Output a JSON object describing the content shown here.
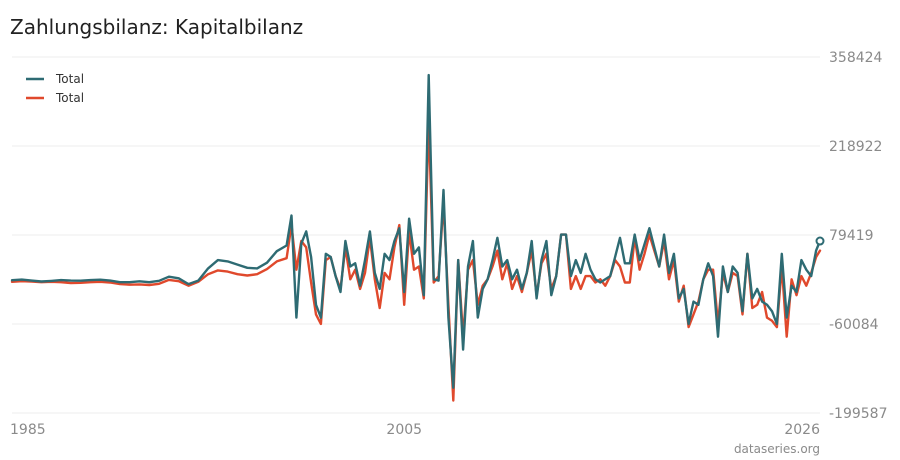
{
  "chart_data": {
    "type": "line",
    "title": "Zahlungsbilanz: Kapitalbilanz",
    "xlabel": "",
    "ylabel": "",
    "source": "dataseries.org",
    "xlim": [
      1985.0,
      2026.2
    ],
    "ylim": [
      -199587,
      358424
    ],
    "y_ticks": [
      "358424",
      "218922",
      "79419",
      "-60084",
      "-199587"
    ],
    "y_tick_values": [
      358424,
      218922,
      79419,
      -60084,
      -199587
    ],
    "x_ticks": [
      "1985",
      "2005",
      "2026"
    ],
    "x_tick_values": [
      1985,
      2005,
      2026
    ],
    "grid": true,
    "legend_position": "top-left",
    "series": [
      {
        "name": "Total",
        "color": "#2e6b73",
        "x": [
          1985.0,
          1985.5,
          1986.0,
          1986.5,
          1987.0,
          1987.5,
          1988.0,
          1988.5,
          1989.0,
          1989.5,
          1990.0,
          1990.5,
          1991.0,
          1991.5,
          1992.0,
          1992.5,
          1993.0,
          1993.5,
          1994.0,
          1994.5,
          1995.0,
          1995.5,
          1996.0,
          1996.5,
          1997.0,
          1997.5,
          1998.0,
          1998.5,
          1999.0,
          1999.25,
          1999.5,
          1999.75,
          2000.0,
          2000.25,
          2000.5,
          2000.75,
          2001.0,
          2001.25,
          2001.5,
          2001.75,
          2002.0,
          2002.25,
          2002.5,
          2002.75,
          2003.0,
          2003.25,
          2003.5,
          2003.75,
          2004.0,
          2004.25,
          2004.5,
          2004.75,
          2005.0,
          2005.25,
          2005.5,
          2005.75,
          2006.0,
          2006.25,
          2006.5,
          2006.75,
          2007.0,
          2007.25,
          2007.5,
          2007.75,
          2008.0,
          2008.25,
          2008.5,
          2008.75,
          2009.0,
          2009.25,
          2009.5,
          2009.75,
          2010.0,
          2010.25,
          2010.5,
          2010.75,
          2011.0,
          2011.25,
          2011.5,
          2011.75,
          2012.0,
          2012.25,
          2012.5,
          2012.75,
          2013.0,
          2013.25,
          2013.5,
          2013.75,
          2014.0,
          2014.25,
          2014.5,
          2014.75,
          2015.0,
          2015.25,
          2015.5,
          2015.75,
          2016.0,
          2016.25,
          2016.5,
          2016.75,
          2017.0,
          2017.25,
          2017.5,
          2017.75,
          2018.0,
          2018.25,
          2018.5,
          2018.75,
          2019.0,
          2019.25,
          2019.5,
          2019.75,
          2020.0,
          2020.25,
          2020.5,
          2020.75,
          2021.0,
          2021.25,
          2021.5,
          2021.75,
          2022.0,
          2022.25,
          2022.5,
          2022.75,
          2023.0,
          2023.25,
          2023.5,
          2023.75,
          2024.0,
          2024.25,
          2024.5,
          2024.75,
          2025.0,
          2025.25,
          2025.5,
          2025.75,
          2026.0,
          2026.2
        ],
        "values": [
          8500,
          9500,
          8000,
          6500,
          7500,
          8700,
          8000,
          7800,
          8700,
          9300,
          8000,
          5500,
          5500,
          6900,
          5500,
          7700,
          14000,
          11500,
          2500,
          8000,
          27000,
          40000,
          38000,
          33000,
          28000,
          27000,
          36000,
          54000,
          63000,
          110000,
          -50000,
          66000,
          85000,
          45000,
          -30000,
          -50000,
          50000,
          45000,
          15000,
          -10000,
          70000,
          30000,
          35000,
          0,
          40000,
          85000,
          20000,
          -5000,
          50000,
          40000,
          70000,
          90000,
          -10000,
          105000,
          50000,
          60000,
          -15000,
          330000,
          10000,
          8000,
          150000,
          -50000,
          -160000,
          40000,
          -100000,
          30000,
          70000,
          -50000,
          -5000,
          10000,
          40000,
          75000,
          30000,
          40000,
          10000,
          25000,
          -5000,
          20000,
          70000,
          -20000,
          40000,
          70000,
          -15000,
          15000,
          80000,
          80000,
          15000,
          40000,
          20000,
          50000,
          25000,
          10000,
          5000,
          10000,
          15000,
          45000,
          75000,
          35000,
          35000,
          80000,
          40000,
          65000,
          90000,
          60000,
          30000,
          80000,
          20000,
          50000,
          -20000,
          -5000,
          -60000,
          -25000,
          -30000,
          10000,
          35000,
          15000,
          -80000,
          30000,
          -10000,
          30000,
          20000,
          -40000,
          50000,
          -20000,
          -5000,
          -25000,
          -30000,
          -40000,
          -60000,
          50000,
          -50000,
          0,
          -10000,
          40000,
          25000,
          15000,
          55000,
          70000
        ]
      },
      {
        "name": "Total",
        "color": "#e0492c",
        "x": [
          1985.0,
          1985.5,
          1986.0,
          1986.5,
          1987.0,
          1987.5,
          1988.0,
          1988.5,
          1989.0,
          1989.5,
          1990.0,
          1990.5,
          1991.0,
          1991.5,
          1992.0,
          1992.5,
          1993.0,
          1993.5,
          1994.0,
          1994.5,
          1995.0,
          1995.5,
          1996.0,
          1996.5,
          1997.0,
          1997.5,
          1998.0,
          1998.5,
          1999.0,
          1999.25,
          1999.5,
          1999.75,
          2000.0,
          2000.25,
          2000.5,
          2000.75,
          2001.0,
          2001.25,
          2001.5,
          2001.75,
          2002.0,
          2002.25,
          2002.5,
          2002.75,
          2003.0,
          2003.25,
          2003.5,
          2003.75,
          2004.0,
          2004.25,
          2004.5,
          2004.75,
          2005.0,
          2005.25,
          2005.5,
          2005.75,
          2006.0,
          2006.25,
          2006.5,
          2006.75,
          2007.0,
          2007.25,
          2007.5,
          2007.75,
          2008.0,
          2008.25,
          2008.5,
          2008.75,
          2009.0,
          2009.25,
          2009.5,
          2009.75,
          2010.0,
          2010.25,
          2010.5,
          2010.75,
          2011.0,
          2011.25,
          2011.5,
          2011.75,
          2012.0,
          2012.25,
          2012.5,
          2012.75,
          2013.0,
          2013.25,
          2013.5,
          2013.75,
          2014.0,
          2014.25,
          2014.5,
          2014.75,
          2015.0,
          2015.25,
          2015.5,
          2015.75,
          2016.0,
          2016.25,
          2016.5,
          2016.75,
          2017.0,
          2017.25,
          2017.5,
          2017.75,
          2018.0,
          2018.25,
          2018.5,
          2018.75,
          2019.0,
          2019.25,
          2019.5,
          2019.75,
          2020.0,
          2020.25,
          2020.5,
          2020.75,
          2021.0,
          2021.25,
          2021.5,
          2021.75,
          2022.0,
          2022.25,
          2022.5,
          2022.75,
          2023.0,
          2023.25,
          2023.5,
          2023.75,
          2024.0,
          2024.25,
          2024.5,
          2024.75,
          2025.0,
          2025.25,
          2025.5,
          2025.75,
          2026.0,
          2026.2
        ],
        "values": [
          6000,
          7000,
          6500,
          5500,
          6000,
          5500,
          4000,
          4500,
          5500,
          6000,
          5000,
          2500,
          1500,
          2000,
          1000,
          3000,
          9000,
          7000,
          0,
          6000,
          18000,
          24000,
          22000,
          18000,
          16000,
          18000,
          26000,
          38000,
          43000,
          95000,
          25000,
          70000,
          60000,
          5000,
          -45000,
          -60000,
          40000,
          45000,
          15000,
          -5000,
          60000,
          10000,
          25000,
          -5000,
          20000,
          75000,
          10000,
          -35000,
          20000,
          10000,
          60000,
          95000,
          -30000,
          85000,
          25000,
          30000,
          -20000,
          260000,
          5000,
          15000,
          130000,
          -30000,
          -180000,
          40000,
          -80000,
          25000,
          40000,
          -30000,
          0,
          10000,
          30000,
          55000,
          10000,
          35000,
          -5000,
          15000,
          -10000,
          20000,
          55000,
          -15000,
          35000,
          50000,
          -5000,
          15000,
          80000,
          80000,
          -5000,
          15000,
          -5000,
          15000,
          15000,
          5000,
          10000,
          0,
          15000,
          40000,
          30000,
          5000,
          5000,
          75000,
          25000,
          50000,
          80000,
          55000,
          30000,
          70000,
          10000,
          40000,
          -25000,
          0,
          -65000,
          -45000,
          -25000,
          10000,
          25000,
          25000,
          -60000,
          20000,
          -10000,
          20000,
          15000,
          -45000,
          50000,
          -35000,
          -30000,
          -10000,
          -50000,
          -55000,
          -65000,
          30000,
          -80000,
          10000,
          -15000,
          15000,
          0,
          20000,
          45000,
          55000
        ]
      }
    ]
  }
}
